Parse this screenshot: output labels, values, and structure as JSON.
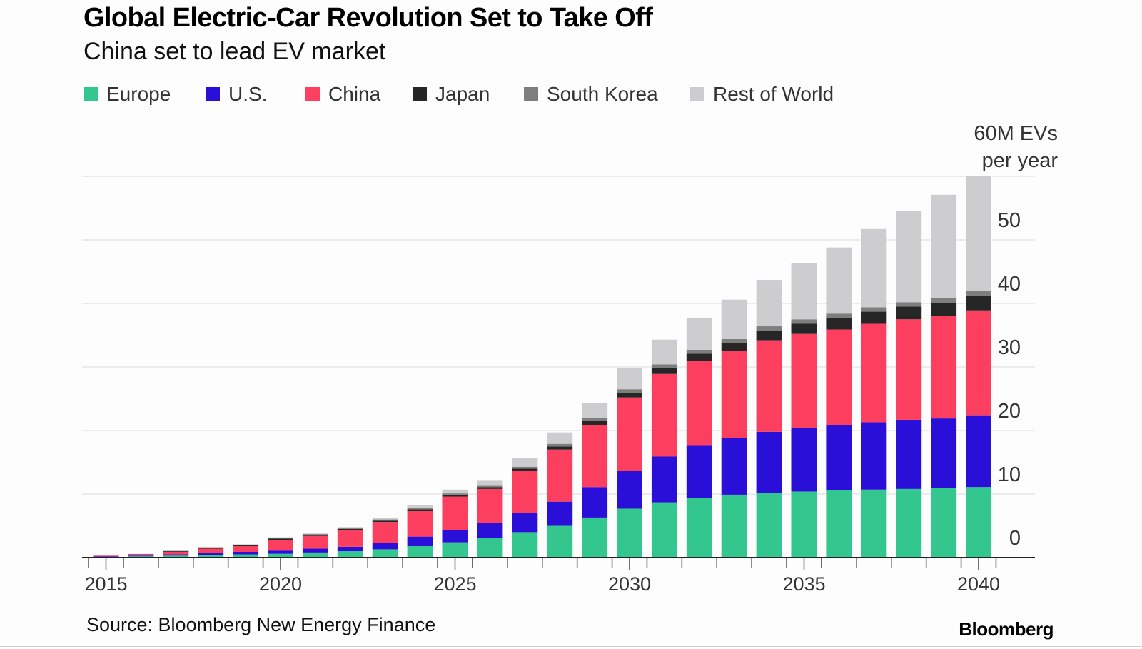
{
  "title": "Global Electric-Car Revolution Set to Take Off",
  "subtitle": "China set to lead EV market",
  "unit_label_line1": "60M EVs",
  "unit_label_line2": "per year",
  "source": "Source: Bloomberg New Energy Finance",
  "brand": "Bloomberg",
  "chart_data": {
    "type": "bar",
    "stacked": true,
    "x": [
      2015,
      2016,
      2017,
      2018,
      2019,
      2020,
      2021,
      2022,
      2023,
      2024,
      2025,
      2026,
      2027,
      2028,
      2029,
      2030,
      2031,
      2032,
      2033,
      2034,
      2035,
      2036,
      2037,
      2038,
      2039,
      2040
    ],
    "x_tick_labels": [
      "2015",
      "2020",
      "2025",
      "2030",
      "2035",
      "2040"
    ],
    "y_tick_labels": [
      "0",
      "10",
      "20",
      "30",
      "40",
      "50"
    ],
    "ylim": [
      0,
      60
    ],
    "y_axis_position": "right",
    "grid": true,
    "legend_position": "top-left",
    "series": [
      {
        "name": "Europe",
        "color": "#33c78f",
        "values": [
          0.1,
          0.2,
          0.3,
          0.4,
          0.5,
          0.6,
          0.8,
          1.0,
          1.3,
          1.8,
          2.4,
          3.1,
          4.0,
          5.0,
          6.3,
          7.7,
          8.7,
          9.4,
          9.9,
          10.2,
          10.4,
          10.6,
          10.7,
          10.8,
          10.9,
          11.1
        ]
      },
      {
        "name": "U.S.",
        "color": "#2a0fd9",
        "values": [
          0.1,
          0.1,
          0.2,
          0.3,
          0.4,
          0.5,
          0.6,
          0.7,
          1.0,
          1.5,
          1.9,
          2.3,
          3.0,
          3.8,
          4.8,
          6.0,
          7.2,
          8.3,
          8.9,
          9.6,
          10.0,
          10.3,
          10.6,
          10.9,
          11.0,
          11.3
        ]
      },
      {
        "name": "China",
        "color": "#fc3f5f",
        "values": [
          0.1,
          0.2,
          0.4,
          0.7,
          0.9,
          1.7,
          2.0,
          2.6,
          3.3,
          4.0,
          5.3,
          5.4,
          6.6,
          8.2,
          9.8,
          11.5,
          13.0,
          13.3,
          13.7,
          14.4,
          14.8,
          15.0,
          15.5,
          15.8,
          16.1,
          16.5
        ]
      },
      {
        "name": "Japan",
        "color": "#262626",
        "values": [
          0.0,
          0.05,
          0.1,
          0.15,
          0.15,
          0.2,
          0.2,
          0.2,
          0.2,
          0.3,
          0.3,
          0.3,
          0.4,
          0.5,
          0.6,
          0.7,
          0.9,
          1.1,
          1.3,
          1.5,
          1.6,
          1.8,
          1.9,
          2.0,
          2.1,
          2.3
        ]
      },
      {
        "name": "South Korea",
        "color": "#7e7e7e",
        "values": [
          0.0,
          0.0,
          0.05,
          0.05,
          0.05,
          0.1,
          0.1,
          0.1,
          0.2,
          0.2,
          0.2,
          0.3,
          0.3,
          0.4,
          0.5,
          0.6,
          0.6,
          0.6,
          0.6,
          0.7,
          0.7,
          0.7,
          0.7,
          0.7,
          0.8,
          0.8
        ]
      },
      {
        "name": "Rest of World",
        "color": "#cdcccf",
        "values": [
          0.0,
          0.05,
          0.05,
          0.1,
          0.1,
          0.1,
          0.1,
          0.2,
          0.3,
          0.5,
          0.6,
          0.8,
          1.4,
          1.8,
          2.3,
          3.3,
          3.9,
          5.0,
          6.2,
          7.3,
          8.9,
          10.4,
          12.3,
          14.3,
          16.2,
          18.0
        ]
      }
    ]
  }
}
